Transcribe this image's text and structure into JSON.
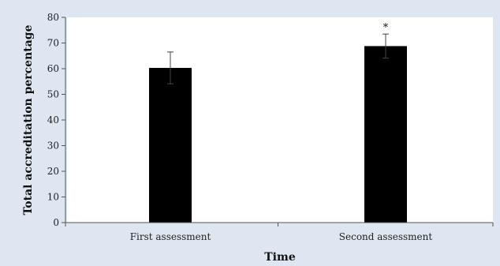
{
  "chart_data": {
    "type": "bar",
    "categories": [
      "First assessment",
      "Second assessment"
    ],
    "values": [
      60.3,
      68.8
    ],
    "error": [
      6.2,
      4.7
    ],
    "annotations": [
      "",
      "*"
    ],
    "xlabel": "Time",
    "ylabel": "Total accreditation percentage",
    "ylim": [
      0,
      80
    ],
    "yticks": [
      0,
      10,
      20,
      30,
      40,
      50,
      60,
      70,
      80
    ],
    "grid": false,
    "colors": {
      "background": "#dde6f1",
      "plot_area": "#ffffff",
      "bar": "#000000",
      "axis": "#555555",
      "error_bar": "#444444"
    }
  }
}
